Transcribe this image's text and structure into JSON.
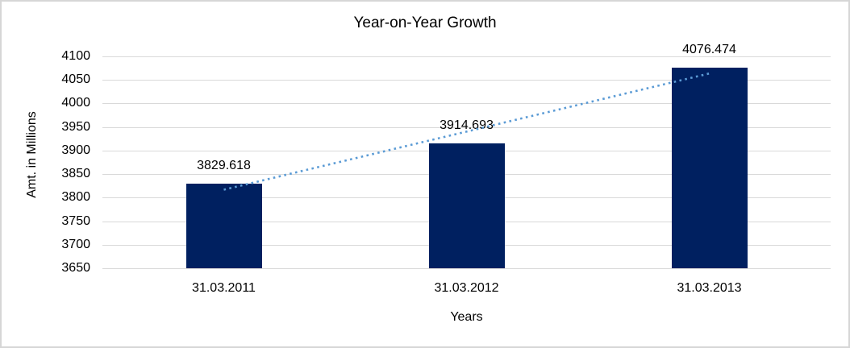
{
  "chart_data": {
    "type": "bar",
    "title": "Year-on-Year Growth",
    "xlabel": "Years",
    "ylabel": "Amt. in Millions",
    "categories": [
      "31.03.2011",
      "31.03.2012",
      "31.03.2013"
    ],
    "values": [
      3829.618,
      3914.693,
      4076.474
    ],
    "data_labels": [
      "3829.618",
      "3914.693",
      "4076.474"
    ],
    "yticks": [
      3650,
      3700,
      3750,
      3800,
      3850,
      3900,
      3950,
      4000,
      4050,
      4100
    ],
    "ylim": [
      3650,
      4100
    ],
    "grid": true,
    "legend": "none",
    "trendline": {
      "type": "linear",
      "dash": "dotted"
    },
    "colors": {
      "bar": "#002060",
      "trendline": "#5b9bd5",
      "gridline": "#d9d9d9",
      "text": "#000000",
      "frame_border": "#d6d6d6",
      "background": "#ffffff"
    }
  }
}
